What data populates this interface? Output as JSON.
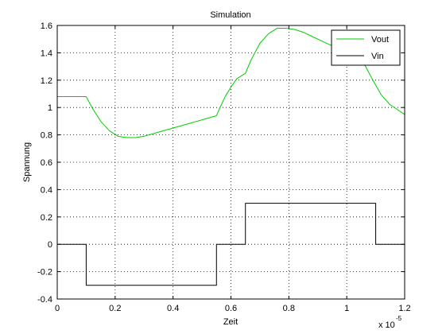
{
  "chart_data": {
    "type": "line",
    "title": "Simulation",
    "xlabel": "Zeit",
    "ylabel": "Spannung",
    "x_multiplier": {
      "base": "x 10",
      "exponent": "-5"
    },
    "xlim": [
      0,
      1.2
    ],
    "ylim": [
      -0.4,
      1.6
    ],
    "x_ticks": [
      0,
      0.2,
      0.4,
      0.6,
      0.8,
      1,
      1.2
    ],
    "x_tick_labels": [
      "0",
      "0.2",
      "0.4",
      "0.6",
      "0.8",
      "1",
      "1.2"
    ],
    "y_ticks": [
      -0.4,
      -0.2,
      0,
      0.2,
      0.4,
      0.6,
      0.8,
      1,
      1.2,
      1.4,
      1.6
    ],
    "y_tick_labels": [
      "-0.4",
      "-0.2",
      "0",
      "0.2",
      "0.4",
      "0.6",
      "0.8",
      "1",
      "1.2",
      "1.4",
      "1.6"
    ],
    "grid": true,
    "legend_position": "top-right",
    "series": [
      {
        "name": "Vout",
        "color": "#00cc00",
        "x": [
          0,
          0.1,
          0.12,
          0.15,
          0.18,
          0.21,
          0.24,
          0.27,
          0.3,
          0.35,
          0.4,
          0.45,
          0.5,
          0.55,
          0.56,
          0.58,
          0.6,
          0.62,
          0.65,
          0.67,
          0.7,
          0.73,
          0.76,
          0.79,
          0.82,
          0.85,
          0.88,
          0.91,
          0.94,
          0.97,
          1.0,
          1.03,
          1.06,
          1.09,
          1.12,
          1.15,
          1.2
        ],
        "y": [
          1.08,
          1.08,
          1.0,
          0.9,
          0.83,
          0.79,
          0.78,
          0.78,
          0.79,
          0.82,
          0.85,
          0.88,
          0.91,
          0.94,
          0.99,
          1.08,
          1.15,
          1.21,
          1.25,
          1.35,
          1.47,
          1.54,
          1.58,
          1.58,
          1.57,
          1.55,
          1.52,
          1.49,
          1.46,
          1.44,
          1.42,
          1.4,
          1.32,
          1.2,
          1.09,
          1.02,
          0.95
        ]
      },
      {
        "name": "Vin",
        "color": "#000000",
        "x": [
          0,
          0.1,
          0.1,
          0.55,
          0.55,
          0.65,
          0.65,
          1.1,
          1.1,
          1.2
        ],
        "y": [
          0,
          0,
          -0.3,
          -0.3,
          0,
          0,
          0.3,
          0.3,
          0,
          0
        ]
      }
    ]
  }
}
